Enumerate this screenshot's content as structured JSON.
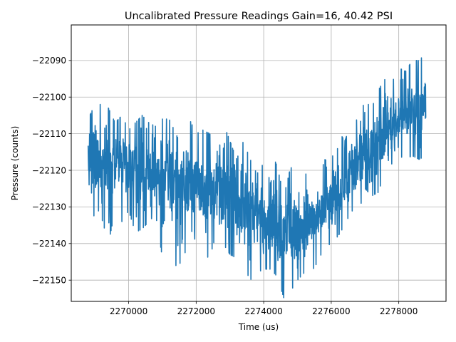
{
  "chart_data": {
    "type": "line",
    "title": "Uncalibrated Pressure Readings Gain=16, 40.42 PSI",
    "xlabel": "Time (us)",
    "ylabel": "Pressure (counts)",
    "xlim": [
      2268300,
      2279400
    ],
    "ylim": [
      -22155.8,
      -22080.3
    ],
    "grid": true,
    "x_ticks": [
      2270000,
      2272000,
      2274000,
      2276000,
      2278000
    ],
    "x_tick_labels": [
      "2270000",
      "2272000",
      "2274000",
      "2276000",
      "2278000"
    ],
    "y_ticks": [
      -22090,
      -22100,
      -22110,
      -22120,
      -22130,
      -22140,
      -22150
    ],
    "y_tick_labels": [
      "−22090",
      "−22100",
      "−22110",
      "−22120",
      "−22130",
      "−22140",
      "−22150"
    ],
    "series": [
      {
        "color": "#1f77b4",
        "x": [
          2268800,
          2269000,
          2269200,
          2269400,
          2269600,
          2269800,
          2270000,
          2270200,
          2270400,
          2270600,
          2270800,
          2271000,
          2271200,
          2271400,
          2271600,
          2271800,
          2272000,
          2272200,
          2272400,
          2272600,
          2272800,
          2273000,
          2273200,
          2273400,
          2273600,
          2273800,
          2274000,
          2274200,
          2274400,
          2274600,
          2274800,
          2275000,
          2275200,
          2275400,
          2275600,
          2275800,
          2276000,
          2276200,
          2276400,
          2276600,
          2276800,
          2277000,
          2277200,
          2277400,
          2277600,
          2277800,
          2278000,
          2278200,
          2278400,
          2278600,
          2278800
        ],
        "y_mean": [
          -22117,
          -22117,
          -22118,
          -22118,
          -22119,
          -22119,
          -22120,
          -22120,
          -22121,
          -22121,
          -22121,
          -22122,
          -22122,
          -22122,
          -22123,
          -22123,
          -22123,
          -22124,
          -22124,
          -22125,
          -22126,
          -22127,
          -22128,
          -22129,
          -22131,
          -22132,
          -22133,
          -22134,
          -22135,
          -22135,
          -22136,
          -22136,
          -22135,
          -22134,
          -22133,
          -22131,
          -22129,
          -22127,
          -22124,
          -22121,
          -22118,
          -22115,
          -22113,
          -22111,
          -22109,
          -22107,
          -22106,
          -22105,
          -22104,
          -22103,
          -22102
        ],
        "y_max": [
          -22106,
          -22102,
          -22102,
          -22103,
          -22107,
          -22105,
          -22109,
          -22107,
          -22105,
          -22107,
          -22108,
          -22106,
          -22106,
          -22110,
          -22114,
          -22106,
          -22110,
          -22109,
          -22110,
          -22113,
          -22107,
          -22112,
          -22117,
          -22112,
          -22117,
          -22121,
          -22118,
          -22114,
          -22119,
          -22127,
          -22119,
          -22123,
          -22122,
          -22118,
          -22125,
          -22117,
          -22118,
          -22109,
          -22112,
          -22107,
          -22106,
          -22101,
          -22103,
          -22098,
          -22095,
          -22096,
          -22092,
          -22093,
          -22090,
          -22090,
          -22088
        ],
        "y_min": [
          -22129,
          -22133,
          -22133,
          -22140,
          -22131,
          -22134,
          -22131,
          -22137,
          -22136,
          -22134,
          -22132,
          -22144,
          -22141,
          -22146,
          -22145,
          -22138,
          -22139,
          -22143,
          -22144,
          -22137,
          -22140,
          -22143,
          -22144,
          -22146,
          -22150,
          -22148,
          -22147,
          -22147,
          -22149,
          -22155,
          -22153,
          -22150,
          -22148,
          -22148,
          -22145,
          -22141,
          -22140,
          -22138,
          -22135,
          -22131,
          -22132,
          -22125,
          -22127,
          -22126,
          -22120,
          -22124,
          -22116,
          -22117,
          -22116,
          -22117,
          -22116
        ]
      }
    ]
  }
}
